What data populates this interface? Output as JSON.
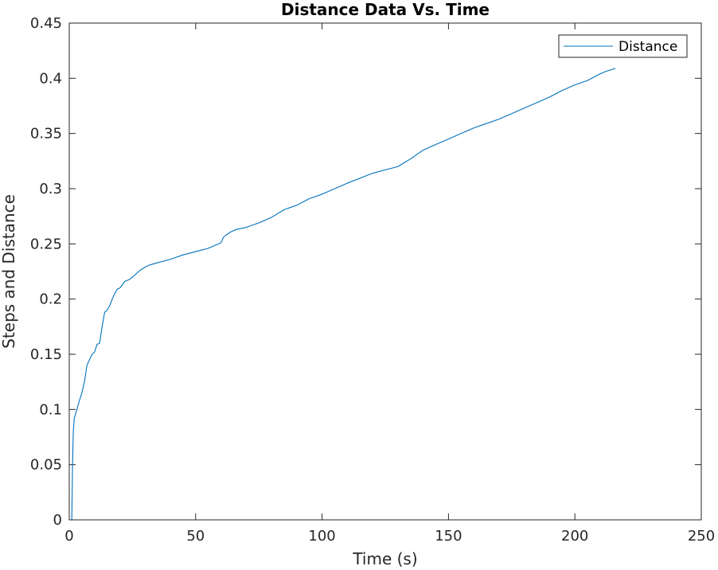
{
  "chart_data": {
    "type": "line",
    "title": "Distance Data Vs. Time",
    "xlabel": "Time (s)",
    "ylabel": "Steps and Distance",
    "xlim": [
      0,
      250
    ],
    "ylim": [
      0,
      0.45
    ],
    "xticks": [
      0,
      50,
      100,
      150,
      200,
      250
    ],
    "xtick_labels": [
      "0",
      "50",
      "100",
      "150",
      "200",
      "250"
    ],
    "yticks": [
      0,
      0.05,
      0.1,
      0.15,
      0.2,
      0.25,
      0.3,
      0.35,
      0.4,
      0.45
    ],
    "ytick_labels": [
      "0",
      "0.05",
      "0.1",
      "0.15",
      "0.2",
      "0.25",
      "0.3",
      "0.35",
      "0.4",
      "0.45"
    ],
    "grid": false,
    "legend_position": "top-right",
    "series": [
      {
        "name": "Distance",
        "color": "#0072bd",
        "x": [
          1,
          1.3,
          1.6,
          2,
          3,
          4,
          5,
          6,
          7,
          8,
          9,
          10,
          11,
          12,
          13,
          14,
          15,
          16,
          17,
          18,
          19,
          20,
          21,
          22,
          24,
          26,
          28,
          30,
          32,
          35,
          40,
          45,
          50,
          55,
          58,
          60,
          61,
          62,
          64,
          66,
          70,
          75,
          80,
          85,
          90,
          95,
          100,
          110,
          120,
          130,
          135,
          140,
          145,
          150,
          155,
          160,
          165,
          170,
          175,
          180,
          185,
          190,
          195,
          200,
          205,
          210,
          212,
          216
        ],
        "values": [
          0,
          0.05,
          0.08,
          0.092,
          0.1,
          0.108,
          0.115,
          0.125,
          0.14,
          0.145,
          0.15,
          0.152,
          0.159,
          0.16,
          0.175,
          0.188,
          0.19,
          0.194,
          0.2,
          0.205,
          0.209,
          0.21,
          0.213,
          0.216,
          0.218,
          0.222,
          0.226,
          0.229,
          0.231,
          0.233,
          0.236,
          0.24,
          0.243,
          0.246,
          0.249,
          0.251,
          0.256,
          0.258,
          0.261,
          0.263,
          0.265,
          0.269,
          0.274,
          0.281,
          0.285,
          0.291,
          0.295,
          0.305,
          0.314,
          0.32,
          0.327,
          0.335,
          0.34,
          0.345,
          0.35,
          0.355,
          0.359,
          0.363,
          0.368,
          0.373,
          0.378,
          0.383,
          0.389,
          0.394,
          0.398,
          0.404,
          0.406,
          0.409
        ]
      }
    ]
  }
}
